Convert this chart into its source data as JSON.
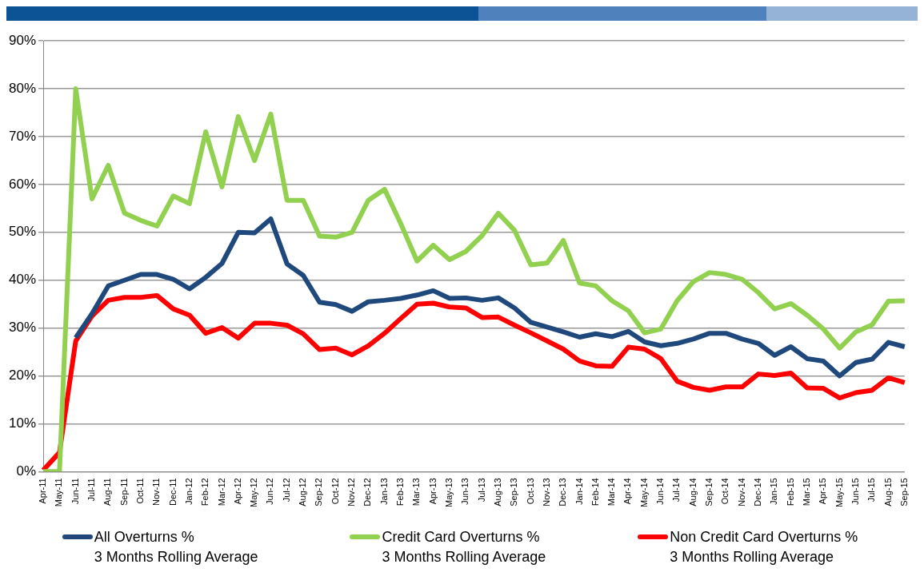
{
  "chart_data": {
    "type": "line",
    "categories": [
      "Apr-11",
      "May-11",
      "Jun-11",
      "Jul-11",
      "Aug-11",
      "Sep-11",
      "Oct-11",
      "Nov-11",
      "Dec-11",
      "Jan-12",
      "Feb-12",
      "Mar-12",
      "Apr-12",
      "May-12",
      "Jun-12",
      "Jul-12",
      "Aug-12",
      "Sep-12",
      "Oct-12",
      "Nov-12",
      "Dec-12",
      "Jan-13",
      "Feb-13",
      "Mar-13",
      "Apr-13",
      "May-13",
      "Jun-13",
      "Jul-13",
      "Aug-13",
      "Sep-13",
      "Oct-13",
      "Nov-13",
      "Dec-13",
      "Jan-14",
      "Feb-14",
      "Mar-14",
      "Apr-14",
      "May-14",
      "Jun-14",
      "Jul-14",
      "Aug-14",
      "Sep-14",
      "Oct-14",
      "Nov-14",
      "Dec-14",
      "Jan-15",
      "Feb-15",
      "Mar-15",
      "Apr-15",
      "May-15",
      "Jun-15",
      "Jul-15",
      "Aug-15",
      "Sep-15"
    ],
    "series": [
      {
        "name": "All Overturns %\n3 Months Rolling Average",
        "color": "#1f497d",
        "values": [
          null,
          null,
          28,
          33,
          38.8,
          40,
          41.2,
          41.2,
          40.2,
          38.2,
          40.6,
          43.5,
          50,
          49.9,
          52.8,
          43.4,
          41,
          35.4,
          34.9,
          33.5,
          35.5,
          35.8,
          36.2,
          36.9,
          37.8,
          36.2,
          36.3,
          35.8,
          36.3,
          34.2,
          31.2,
          30.2,
          29.2,
          28.1,
          28.8,
          28.2,
          29.3,
          27.1,
          26.3,
          26.8,
          27.7,
          28.9,
          28.9,
          27.7,
          26.8,
          24.3,
          26.1,
          23.6,
          23.1,
          20,
          22.8,
          23.5,
          27,
          26.1
        ]
      },
      {
        "name": "Credit Card Overturns %\n3 Months Rolling Average",
        "color": "#92d050",
        "values": [
          0,
          0,
          80,
          57,
          64,
          54,
          52.5,
          51.3,
          57.6,
          56,
          71,
          59.5,
          74.2,
          65,
          74.7,
          56.7,
          56.7,
          49.2,
          49,
          50,
          56.7,
          59,
          51.8,
          44,
          47.3,
          44.3,
          46,
          49.3,
          54,
          50.4,
          43.2,
          43.6,
          48.3,
          39.4,
          38.8,
          35.7,
          33.6,
          29,
          29.8,
          35.7,
          39.7,
          41.6,
          41.2,
          40.2,
          37.4,
          34,
          35.1,
          32.7,
          29.8,
          25.8,
          29.2,
          30.7,
          35.6,
          35.7
        ]
      },
      {
        "name": "Non Credit Card Overturns %\n3 Months Rolling Average",
        "color": "#ff0000",
        "values": [
          0.3,
          4,
          27.3,
          32.5,
          35.8,
          36.4,
          36.4,
          36.8,
          34,
          32.7,
          28.9,
          30.1,
          27.9,
          31,
          31,
          30.6,
          28.8,
          25.5,
          25.8,
          24.4,
          26.3,
          28.9,
          32,
          35,
          35.2,
          34.4,
          34.2,
          32.2,
          32.3,
          30.6,
          29,
          27.3,
          25.6,
          23.1,
          22.1,
          22,
          26,
          25.6,
          23.6,
          18.9,
          17.6,
          17,
          17.7,
          17.7,
          20.4,
          20.1,
          20.6,
          17.5,
          17.4,
          15.4,
          16.5,
          17,
          19.6,
          18.6
        ]
      }
    ],
    "ylim": [
      0,
      90
    ],
    "yticks": [
      {
        "value": 0,
        "label": "0%"
      },
      {
        "value": 10,
        "label": "10%"
      },
      {
        "value": 20,
        "label": "20%"
      },
      {
        "value": 30,
        "label": "30%"
      },
      {
        "value": 40,
        "label": "40%"
      },
      {
        "value": 50,
        "label": "50%"
      },
      {
        "value": 60,
        "label": "60%"
      },
      {
        "value": 70,
        "label": "70%"
      },
      {
        "value": 80,
        "label": "80%"
      },
      {
        "value": 90,
        "label": "90%"
      }
    ],
    "grid": "y",
    "legend": "bottom",
    "marker": "none",
    "line_style": "solid"
  }
}
